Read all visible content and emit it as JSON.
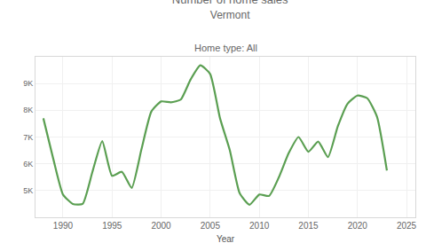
{
  "chart_data": {
    "type": "line",
    "title": "Number of home sales",
    "subtitle": "Vermont",
    "annotations": [
      "Home type: All"
    ],
    "x_label": "Year",
    "x": [
      1988,
      1989,
      1990,
      1991,
      1992,
      1993,
      1994,
      1995,
      1996,
      1997,
      1998,
      1999,
      2000,
      2001,
      2002,
      2003,
      2004,
      2005,
      2006,
      2007,
      2008,
      2009,
      2010,
      2011,
      2012,
      2013,
      2014,
      2015,
      2016,
      2017,
      2018,
      2019,
      2020,
      2021,
      2022,
      2023
    ],
    "values": [
      7700,
      6200,
      4850,
      4500,
      4500,
      5700,
      6850,
      5550,
      5700,
      5100,
      6550,
      7950,
      8330,
      8300,
      8400,
      9150,
      9680,
      9350,
      7700,
      6500,
      4900,
      4470,
      4850,
      4800,
      5500,
      6400,
      7000,
      6450,
      6830,
      6250,
      7400,
      8250,
      8550,
      8450,
      7750,
      5750
    ],
    "color": "#5b9f52",
    "xlim": [
      1987.2,
      2025.9
    ],
    "xticks": [
      1990,
      1995,
      2000,
      2005,
      2010,
      2015,
      2020,
      2025
    ],
    "ylim": [
      4000,
      10000
    ],
    "yticks": [
      {
        "value": 5000,
        "label": "5K"
      },
      {
        "value": 6000,
        "label": "6K"
      },
      {
        "value": 7000,
        "label": "7K"
      },
      {
        "value": 8000,
        "label": "8K"
      },
      {
        "value": 9000,
        "label": "9K"
      }
    ],
    "grid": true
  }
}
